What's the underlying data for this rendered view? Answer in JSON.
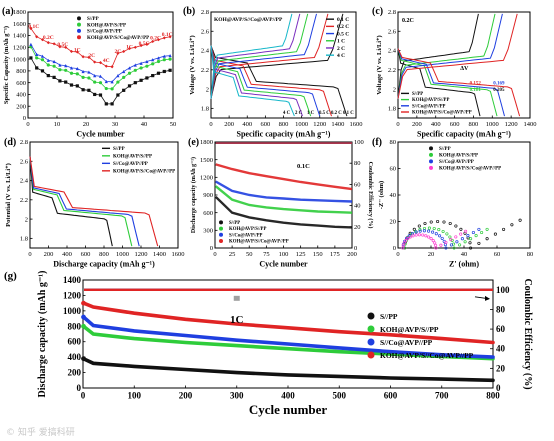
{
  "figure_label": "",
  "watermark": "© 知乎 爱搞科研",
  "colors": {
    "black": "#111111",
    "green": "#2ecc3a",
    "blue": "#1f3fe0",
    "red": "#e02424",
    "pink": "#ff3fd0",
    "orange": "#ff8c1a",
    "purple": "#7a2fbf",
    "cyan": "#16b7c9"
  },
  "chart_data": [
    {
      "id": "a",
      "panel_label": "(a)",
      "type": "line",
      "xlabel": "Cycle number",
      "ylabel": "Specific Capacity (mAh g⁻¹)",
      "xlim": [
        0,
        50
      ],
      "ylim": [
        0,
        1800
      ],
      "xticks": [
        0,
        10,
        20,
        30,
        40,
        50
      ],
      "yticks": [
        0,
        200,
        400,
        600,
        800,
        1000,
        1200,
        1400,
        1600,
        1800
      ],
      "legend_position": "top-right",
      "rate_labels": [
        {
          "text": "0.1C",
          "x": 2,
          "y": 1530
        },
        {
          "text": "0.2C",
          "x": 7,
          "y": 1340
        },
        {
          "text": "0.5C",
          "x": 12,
          "y": 1220
        },
        {
          "text": "1C",
          "x": 17,
          "y": 1130
        },
        {
          "text": "2C",
          "x": 22,
          "y": 1040
        },
        {
          "text": "4C",
          "x": 27,
          "y": 950
        },
        {
          "text": "2C",
          "x": 31,
          "y": 1100
        },
        {
          "text": "1C",
          "x": 35,
          "y": 1180
        },
        {
          "text": "0.5C",
          "x": 40,
          "y": 1240
        },
        {
          "text": "0.2C",
          "x": 44,
          "y": 1330
        },
        {
          "text": "0.1C",
          "x": 48,
          "y": 1390
        }
      ],
      "series": [
        {
          "name": "S//PP",
          "color": "#111111",
          "marker": "square",
          "x": [
            1,
            3,
            5,
            7,
            9,
            11,
            13,
            15,
            17,
            19,
            21,
            23,
            25,
            27,
            29,
            31,
            33,
            35,
            37,
            39,
            41,
            43,
            45,
            47,
            49
          ],
          "y": [
            1020,
            850,
            800,
            720,
            690,
            630,
            610,
            560,
            545,
            480,
            470,
            400,
            390,
            240,
            240,
            390,
            470,
            545,
            600,
            640,
            680,
            720,
            760,
            790,
            810
          ]
        },
        {
          "name": "KOH@AVP/S//PP",
          "color": "#2ecc3a",
          "marker": "circle",
          "x": [
            1,
            3,
            5,
            7,
            9,
            11,
            13,
            15,
            17,
            19,
            21,
            23,
            25,
            27,
            29,
            31,
            33,
            35,
            37,
            39,
            41,
            43,
            45,
            47,
            49
          ],
          "y": [
            1210,
            1020,
            990,
            900,
            880,
            820,
            810,
            760,
            750,
            690,
            680,
            610,
            600,
            500,
            495,
            610,
            690,
            760,
            810,
            850,
            880,
            920,
            960,
            990,
            1000
          ]
        },
        {
          "name": "S//Co@AVP//PP",
          "color": "#1f3fe0",
          "marker": "triangle",
          "x": [
            1,
            3,
            5,
            7,
            9,
            11,
            13,
            15,
            17,
            19,
            21,
            23,
            25,
            27,
            29,
            31,
            33,
            35,
            37,
            39,
            41,
            43,
            45,
            47,
            49
          ],
          "y": [
            1250,
            1080,
            1050,
            980,
            960,
            900,
            890,
            850,
            840,
            790,
            780,
            720,
            710,
            620,
            615,
            720,
            790,
            850,
            900,
            930,
            960,
            990,
            1020,
            1050,
            1060
          ]
        },
        {
          "name": "KOH@AVP/S//Co@AVP//PP",
          "color": "#e02424",
          "marker": "diamond",
          "x": [
            1,
            3,
            5,
            7,
            9,
            11,
            13,
            15,
            17,
            19,
            21,
            23,
            25,
            27,
            29,
            31,
            33,
            35,
            37,
            39,
            41,
            43,
            45,
            47,
            49
          ],
          "y": [
            1520,
            1380,
            1330,
            1280,
            1260,
            1210,
            1200,
            1130,
            1120,
            1040,
            1030,
            950,
            940,
            880,
            870,
            1100,
            1130,
            1180,
            1200,
            1230,
            1250,
            1300,
            1330,
            1360,
            1380
          ]
        }
      ]
    },
    {
      "id": "b",
      "panel_label": "(b)",
      "type": "line",
      "title": "KOH@AVP/S//Co@AVP//PP",
      "xlabel": "Specific capacity (mAh g⁻¹)",
      "ylabel": "Voltage (V vs. Li/Li⁺)",
      "xlim": [
        0,
        1600
      ],
      "ylim": [
        1.7,
        2.8
      ],
      "xticks": [
        0,
        200,
        400,
        600,
        800,
        1000,
        1200,
        1400,
        1600
      ],
      "yticks": [
        1.8,
        2.0,
        2.2,
        2.4,
        2.6,
        2.8
      ],
      "legend_position": "top-right",
      "end_labels": [
        "4 C",
        "2 C",
        "1 C",
        "0.5 C",
        "0.2 C",
        "0.1 C"
      ],
      "series": [
        {
          "name": "0.1 C",
          "color": "#111111",
          "capacity": 1500
        },
        {
          "name": "0.2 C",
          "color": "#e02424",
          "capacity": 1330
        },
        {
          "name": "0.5 C",
          "color": "#1f3fe0",
          "capacity": 1200
        },
        {
          "name": "1 C",
          "color": "#2ecc3a",
          "capacity": 1100
        },
        {
          "name": "2 C",
          "color": "#7a2fbf",
          "capacity": 1010
        },
        {
          "name": "4 C",
          "color": "#16b7c9",
          "capacity": 920
        }
      ]
    },
    {
      "id": "c",
      "panel_label": "(c)",
      "type": "line",
      "title": "0.2C",
      "xlabel": "Specific capacity (mAh g⁻¹)",
      "ylabel": "Voltage (V vs. Li/Li⁺)",
      "xlim": [
        0,
        1400
      ],
      "ylim": [
        1.7,
        2.8
      ],
      "xticks": [
        0,
        200,
        400,
        600,
        800,
        1000,
        1200,
        1400
      ],
      "yticks": [
        1.8,
        2.0,
        2.2,
        2.4,
        2.6,
        2.8
      ],
      "legend_position": "bottom-left",
      "delta_label": "ΔV",
      "polarization_values": [
        {
          "text": "0.152",
          "color": "#e02424"
        },
        {
          "text": "0.169",
          "color": "#1f3fe0"
        },
        {
          "text": "0.181",
          "color": "#2ecc3a"
        },
        {
          "text": "0.205",
          "color": "#111111"
        }
      ],
      "series": [
        {
          "name": "S//PP",
          "color": "#111111",
          "capacity": 870
        },
        {
          "name": "KOH@AVP/S//PP",
          "color": "#2ecc3a",
          "capacity": 1050
        },
        {
          "name": "S//Co@AVP//PP",
          "color": "#1f3fe0",
          "capacity": 1130
        },
        {
          "name": "KOH@AVP/S//Co@AVP//PP",
          "color": "#e02424",
          "capacity": 1290
        }
      ]
    },
    {
      "id": "d",
      "panel_label": "(d)",
      "type": "line",
      "xlabel": "Discharge capacity (mAh g⁻¹)",
      "ylabel": "Potential (V vs. Li/Li⁺)",
      "xlim": [
        0,
        1600
      ],
      "ylim": [
        1.7,
        2.8
      ],
      "xticks": [
        0,
        200,
        400,
        600,
        800,
        1000,
        1200,
        1400,
        1600
      ],
      "yticks": [
        1.8,
        2.0,
        2.2,
        2.4,
        2.6,
        2.8
      ],
      "legend_position": "top-right",
      "series": [
        {
          "name": "S//PP",
          "color": "#111111",
          "capacity": 890
        },
        {
          "name": "KOH@AVP/S//PP",
          "color": "#2ecc3a",
          "capacity": 1100
        },
        {
          "name": "S//Co@AVP//PP",
          "color": "#1f3fe0",
          "capacity": 1180
        },
        {
          "name": "KOH@AVP/S//Co@AVP//PP",
          "color": "#e02424",
          "capacity": 1380
        }
      ]
    },
    {
      "id": "e",
      "panel_label": "(e)",
      "type": "scatter",
      "title": "0.1C",
      "xlabel": "Cycle number",
      "ylabel": "Discharge capacity (mAh g⁻¹)",
      "y2label": "Coulombic Efficiency (%)",
      "xlim": [
        0,
        200
      ],
      "ylim": [
        0,
        1800
      ],
      "y2lim": [
        0,
        100
      ],
      "xticks": [
        0,
        25,
        50,
        75,
        100,
        125,
        150,
        175,
        200
      ],
      "yticks": [
        0,
        300,
        600,
        900,
        1200,
        1500,
        1800
      ],
      "y2ticks": [
        0,
        20,
        40,
        60,
        80,
        100
      ],
      "legend_position": "bottom-left",
      "efficiency_percent": 99,
      "series": [
        {
          "name": "S//PP",
          "color": "#111111",
          "x": [
            1,
            25,
            50,
            75,
            100,
            125,
            150,
            175,
            200
          ],
          "y": [
            870,
            600,
            520,
            470,
            430,
            400,
            380,
            360,
            350
          ]
        },
        {
          "name": "KOH@AVP/S//PP",
          "color": "#2ecc3a",
          "x": [
            1,
            25,
            50,
            75,
            100,
            125,
            150,
            175,
            200
          ],
          "y": [
            1050,
            820,
            730,
            690,
            660,
            640,
            620,
            610,
            600
          ]
        },
        {
          "name": "S//Co@AVP//PP",
          "color": "#1f3fe0",
          "x": [
            1,
            25,
            50,
            75,
            100,
            125,
            150,
            175,
            200
          ],
          "y": [
            1130,
            970,
            900,
            860,
            840,
            820,
            810,
            800,
            790
          ]
        },
        {
          "name": "KOH@AVP/S//Co@AVP//PP",
          "color": "#e02424",
          "x": [
            1,
            25,
            50,
            75,
            100,
            125,
            150,
            175,
            200
          ],
          "y": [
            1420,
            1340,
            1270,
            1220,
            1170,
            1120,
            1080,
            1040,
            1000
          ]
        }
      ]
    },
    {
      "id": "f",
      "panel_label": "(f)",
      "type": "scatter",
      "xlabel": "Z' (ohm)",
      "ylabel": "-Z'' (ohm)",
      "xlim": [
        0,
        80
      ],
      "ylim": [
        0,
        80
      ],
      "xticks": [
        0,
        20,
        40,
        60,
        80
      ],
      "yticks": [
        0,
        20,
        40,
        60,
        80
      ],
      "legend_position": "top-right",
      "series": [
        {
          "name": "S//PP",
          "color": "#111111",
          "rs": 4,
          "rct": 40,
          "tail": 30
        },
        {
          "name": "KOH@AVP/S//PP",
          "color": "#2ecc3a",
          "rs": 4,
          "rct": 30,
          "tail": 20
        },
        {
          "name": "S//Co@AVP//PP",
          "color": "#1f3fe0",
          "rs": 3,
          "rct": 26,
          "tail": 20
        },
        {
          "name": "KOH@AVP/S//Co@AVP//PP",
          "color": "#ff3fd0",
          "rs": 3,
          "rct": 20,
          "tail": 18
        }
      ]
    },
    {
      "id": "g",
      "panel_label": "(g)",
      "type": "scatter",
      "title": "1C",
      "xlabel": "Cycle number",
      "ylabel": "Discharge capacity (mAh g⁻¹)",
      "y2label": "Coulombic Efficiency (%)",
      "xlim": [
        0,
        800
      ],
      "ylim": [
        0,
        1400
      ],
      "y2lim": [
        0,
        110
      ],
      "xticks": [
        0,
        100,
        200,
        300,
        400,
        500,
        600,
        700,
        800
      ],
      "yticks": [
        0,
        200,
        400,
        600,
        800,
        1000,
        1200,
        1400
      ],
      "y2ticks": [
        0,
        20,
        40,
        60,
        80,
        100
      ],
      "legend_position": "right",
      "efficiency_percent": 100,
      "series": [
        {
          "name": "S//PP",
          "color": "#111111",
          "x": [
            1,
            20,
            100,
            200,
            300,
            400,
            500,
            600,
            700,
            800
          ],
          "y": [
            380,
            320,
            280,
            240,
            200,
            170,
            150,
            130,
            115,
            100
          ]
        },
        {
          "name": "KOH@AVP/S//PP",
          "color": "#2ecc3a",
          "x": [
            1,
            20,
            100,
            200,
            300,
            400,
            500,
            600,
            700,
            800
          ],
          "y": [
            800,
            700,
            640,
            590,
            550,
            510,
            470,
            440,
            410,
            380
          ]
        },
        {
          "name": "S//Co@AVP//PP",
          "color": "#1f3fe0",
          "x": [
            1,
            20,
            100,
            200,
            300,
            400,
            500,
            600,
            700,
            800
          ],
          "y": [
            920,
            810,
            740,
            680,
            620,
            570,
            520,
            470,
            430,
            400
          ]
        },
        {
          "name": "KOH@AVP/S//Co@AVP//PP",
          "color": "#e02424",
          "x": [
            1,
            20,
            100,
            200,
            300,
            400,
            500,
            600,
            700,
            800
          ],
          "y": [
            1100,
            1050,
            970,
            890,
            830,
            780,
            730,
            690,
            640,
            590
          ]
        }
      ]
    }
  ]
}
